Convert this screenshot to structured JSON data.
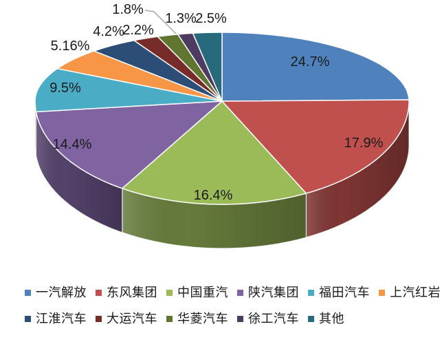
{
  "chart_data": {
    "type": "pie",
    "style": "3d",
    "start_angle_deg": 0,
    "direction": "clockwise",
    "legend_position": "bottom",
    "title": "",
    "labels": [
      "一汽解放",
      "东风集团",
      "中国重汽",
      "陕汽集团",
      "福田汽车",
      "上汽红岩",
      "江淮汽车",
      "大运汽车",
      "华菱汽车",
      "徐工汽车",
      "其他"
    ],
    "values": [
      24.7,
      17.9,
      16.4,
      14.4,
      9.5,
      5.16,
      4.2,
      2.2,
      1.8,
      1.3,
      2.5
    ],
    "value_labels": [
      "24.7%",
      "17.9%",
      "16.4%",
      "14.4%",
      "9.5%",
      "5.16%",
      "4.2%",
      "2.2%",
      "1.8%",
      "1.3%",
      "2.5%"
    ],
    "colors": [
      "#4F81BD",
      "#C0504D",
      "#9BBB59",
      "#8064A2",
      "#4BACC6",
      "#F79646",
      "#2C4D75",
      "#772C2A",
      "#5F7530",
      "#4D3B62",
      "#276A7C"
    ]
  },
  "label_text_color": "#1a1a1a",
  "leader_line_color": "#A6A6A6",
  "background_color": "#FFFFFF"
}
